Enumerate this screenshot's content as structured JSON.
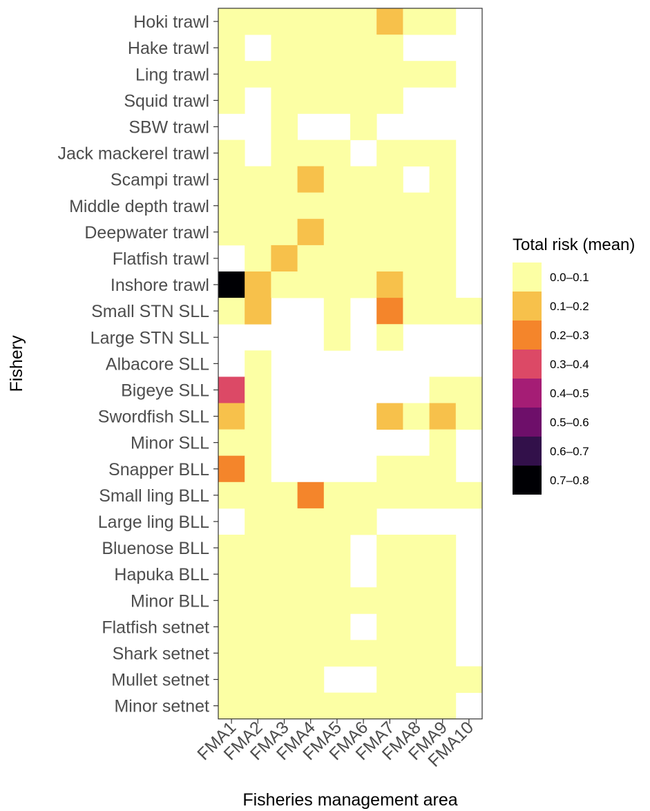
{
  "chart_data": {
    "type": "heatmap",
    "xlabel": "Fisheries management area",
    "ylabel": "Fishery",
    "x": [
      "FMA1",
      "FMA2",
      "FMA3",
      "FMA4",
      "FMA5",
      "FMA6",
      "FMA7",
      "FMA8",
      "FMA9",
      "FMA10"
    ],
    "y": [
      "Hoki trawl",
      "Hake trawl",
      "Ling trawl",
      "Squid trawl",
      "SBW trawl",
      "Jack mackerel trawl",
      "Scampi trawl",
      "Middle depth trawl",
      "Deepwater trawl",
      "Flatfish trawl",
      "Inshore trawl",
      "Small STN SLL",
      "Large STN SLL",
      "Albacore SLL",
      "Bigeye SLL",
      "Swordfish SLL",
      "Minor SLL",
      "Snapper BLL",
      "Small ling BLL",
      "Large ling BLL",
      "Bluenose BLL",
      "Hapuka BLL",
      "Minor BLL",
      "Flatfish setnet",
      "Shark setnet",
      "Mullet setnet",
      "Minor setnet"
    ],
    "grid": false,
    "legend": {
      "title": "Total risk (mean)",
      "placement": "right",
      "bins": [
        {
          "label": "0.0–0.1",
          "color": "#FCFFA4"
        },
        {
          "label": "0.1–0.2",
          "color": "#F7C14B"
        },
        {
          "label": "0.2–0.3",
          "color": "#F4852B"
        },
        {
          "label": "0.3–0.4",
          "color": "#DC4966"
        },
        {
          "label": "0.4–0.5",
          "color": "#A51D75"
        },
        {
          "label": "0.5–0.6",
          "color": "#6E0F6A"
        },
        {
          "label": "0.6–0.7",
          "color": "#32104A"
        },
        {
          "label": "0.7–0.8",
          "color": "#000004"
        }
      ]
    },
    "bin_index_note": "",
    "values": [
      [
        0,
        0,
        0,
        0,
        0,
        0,
        1,
        0,
        0,
        null
      ],
      [
        0,
        null,
        0,
        0,
        0,
        0,
        0,
        null,
        null,
        null
      ],
      [
        0,
        0,
        0,
        0,
        0,
        0,
        0,
        0,
        0,
        null
      ],
      [
        0,
        null,
        0,
        0,
        0,
        0,
        0,
        null,
        null,
        null
      ],
      [
        null,
        null,
        0,
        null,
        null,
        0,
        null,
        null,
        null,
        null
      ],
      [
        0,
        null,
        0,
        0,
        0,
        null,
        0,
        0,
        0,
        null
      ],
      [
        0,
        0,
        0,
        1,
        0,
        0,
        0,
        null,
        0,
        null
      ],
      [
        0,
        0,
        0,
        0,
        0,
        0,
        0,
        0,
        0,
        null
      ],
      [
        0,
        0,
        0,
        1,
        0,
        0,
        0,
        0,
        0,
        null
      ],
      [
        null,
        0,
        1,
        0,
        0,
        0,
        0,
        0,
        0,
        null
      ],
      [
        7,
        1,
        0,
        0,
        0,
        0,
        1,
        0,
        0,
        null
      ],
      [
        0,
        1,
        null,
        null,
        0,
        null,
        2,
        0,
        0,
        0
      ],
      [
        null,
        null,
        null,
        null,
        0,
        null,
        0,
        null,
        null,
        null
      ],
      [
        null,
        0,
        null,
        null,
        null,
        null,
        null,
        null,
        null,
        null
      ],
      [
        3,
        0,
        null,
        null,
        null,
        null,
        null,
        null,
        0,
        0
      ],
      [
        1,
        0,
        null,
        null,
        null,
        null,
        1,
        0,
        1,
        0
      ],
      [
        0,
        0,
        null,
        null,
        null,
        null,
        null,
        null,
        0,
        null
      ],
      [
        2,
        0,
        null,
        null,
        null,
        null,
        0,
        0,
        0,
        null
      ],
      [
        0,
        0,
        0,
        2,
        0,
        0,
        0,
        0,
        0,
        0
      ],
      [
        null,
        0,
        0,
        0,
        0,
        0,
        null,
        null,
        null,
        null
      ],
      [
        0,
        0,
        0,
        0,
        0,
        null,
        0,
        0,
        0,
        null
      ],
      [
        0,
        0,
        0,
        0,
        0,
        null,
        0,
        0,
        0,
        null
      ],
      [
        0,
        0,
        0,
        0,
        0,
        0,
        0,
        0,
        0,
        null
      ],
      [
        0,
        0,
        0,
        0,
        0,
        null,
        0,
        0,
        0,
        null
      ],
      [
        0,
        0,
        0,
        0,
        0,
        0,
        0,
        0,
        0,
        null
      ],
      [
        0,
        0,
        0,
        0,
        null,
        null,
        0,
        0,
        0,
        0
      ],
      [
        0,
        0,
        0,
        0,
        0,
        0,
        0,
        0,
        0,
        null
      ]
    ]
  }
}
